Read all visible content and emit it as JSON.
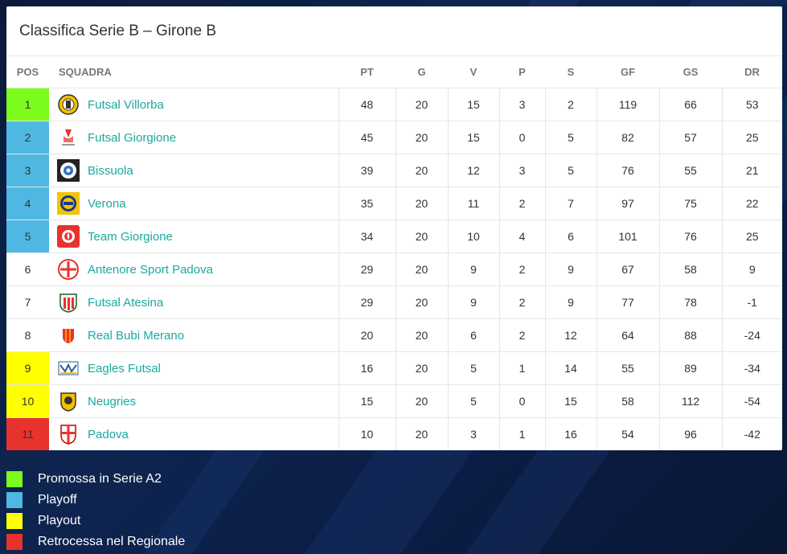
{
  "title": "Classifica Serie B – Girone B",
  "columns": [
    "POS",
    "SQUADRA",
    "PT",
    "G",
    "V",
    "P",
    "S",
    "GF",
    "GS",
    "DR"
  ],
  "colors": {
    "promoted": "#7cfc1c",
    "playoff": "#4eb8e3",
    "playout": "#ffff00",
    "relegated": "#e8322d",
    "team_link": "#1aa9a0"
  },
  "rows": [
    {
      "pos": "1",
      "team": "Futsal Villorba",
      "pt": "48",
      "g": "20",
      "v": "15",
      "p": "3",
      "s": "2",
      "gf": "119",
      "gs": "66",
      "dr": "53",
      "zone": "promoted",
      "logo": "villorba-logo-icon"
    },
    {
      "pos": "2",
      "team": "Futsal Giorgione",
      "pt": "45",
      "g": "20",
      "v": "15",
      "p": "0",
      "s": "5",
      "gf": "82",
      "gs": "57",
      "dr": "25",
      "zone": "playoff",
      "logo": "giorgione-logo-icon"
    },
    {
      "pos": "3",
      "team": "Bissuola",
      "pt": "39",
      "g": "20",
      "v": "12",
      "p": "3",
      "s": "5",
      "gf": "76",
      "gs": "55",
      "dr": "21",
      "zone": "playoff",
      "logo": "bissuola-logo-icon"
    },
    {
      "pos": "4",
      "team": "Verona",
      "pt": "35",
      "g": "20",
      "v": "11",
      "p": "2",
      "s": "7",
      "gf": "97",
      "gs": "75",
      "dr": "22",
      "zone": "playoff",
      "logo": "verona-logo-icon"
    },
    {
      "pos": "5",
      "team": "Team Giorgione",
      "pt": "34",
      "g": "20",
      "v": "10",
      "p": "4",
      "s": "6",
      "gf": "101",
      "gs": "76",
      "dr": "25",
      "zone": "playoff",
      "logo": "team-giorgione-logo-icon"
    },
    {
      "pos": "6",
      "team": "Antenore Sport Padova",
      "pt": "29",
      "g": "20",
      "v": "9",
      "p": "2",
      "s": "9",
      "gf": "67",
      "gs": "58",
      "dr": "9",
      "zone": "none",
      "logo": "antenore-logo-icon"
    },
    {
      "pos": "7",
      "team": "Futsal Atesina",
      "pt": "29",
      "g": "20",
      "v": "9",
      "p": "2",
      "s": "9",
      "gf": "77",
      "gs": "78",
      "dr": "-1",
      "zone": "none",
      "logo": "atesina-logo-icon"
    },
    {
      "pos": "8",
      "team": "Real Bubi Merano",
      "pt": "20",
      "g": "20",
      "v": "6",
      "p": "2",
      "s": "12",
      "gf": "64",
      "gs": "88",
      "dr": "-24",
      "zone": "none",
      "logo": "merano-logo-icon"
    },
    {
      "pos": "9",
      "team": "Eagles Futsal",
      "pt": "16",
      "g": "20",
      "v": "5",
      "p": "1",
      "s": "14",
      "gf": "55",
      "gs": "89",
      "dr": "-34",
      "zone": "playout",
      "logo": "eagles-logo-icon"
    },
    {
      "pos": "10",
      "team": "Neugries",
      "pt": "15",
      "g": "20",
      "v": "5",
      "p": "0",
      "s": "15",
      "gf": "58",
      "gs": "112",
      "dr": "-54",
      "zone": "playout",
      "logo": "neugries-logo-icon"
    },
    {
      "pos": "11",
      "team": "Padova",
      "pt": "10",
      "g": "20",
      "v": "3",
      "p": "1",
      "s": "16",
      "gf": "54",
      "gs": "96",
      "dr": "-42",
      "zone": "relegated",
      "logo": "padova-logo-icon"
    }
  ],
  "legend": [
    {
      "label": "Promossa in Serie A2",
      "zone": "promoted"
    },
    {
      "label": "Playoff",
      "zone": "playoff"
    },
    {
      "label": "Playout",
      "zone": "playout"
    },
    {
      "label": "Retrocessa nel Regionale",
      "zone": "relegated"
    }
  ]
}
